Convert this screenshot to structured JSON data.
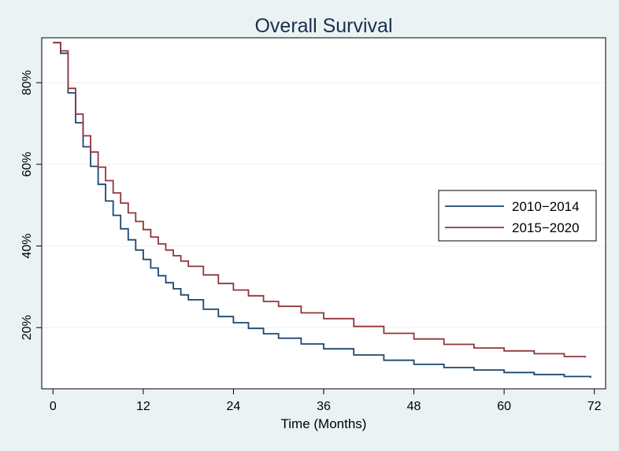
{
  "chart_data": {
    "type": "line",
    "title": "Overall Survival",
    "xlabel": "Time (Months)",
    "ylabel": "",
    "xlim": [
      -1.5,
      73.5
    ],
    "ylim": [
      5,
      91
    ],
    "xticks": [
      0,
      12,
      24,
      36,
      48,
      60,
      72
    ],
    "xtick_labels": [
      "0",
      "12",
      "24",
      "36",
      "48",
      "60",
      "72"
    ],
    "yticks": [
      20,
      40,
      60,
      80
    ],
    "ytick_labels": [
      "20%",
      "40%",
      "60%",
      "80%"
    ],
    "grid": true,
    "legend_position": "right",
    "step": true,
    "series": [
      {
        "name": "2010−2014",
        "color": "#1a476f",
        "x": [
          0,
          1,
          2,
          3,
          4,
          5,
          6,
          7,
          8,
          9,
          10,
          11,
          12,
          13,
          14,
          15,
          16,
          17,
          18,
          20,
          22,
          24,
          26,
          28,
          30,
          33,
          36,
          40,
          44,
          48,
          52,
          56,
          60,
          64,
          68,
          71.5
        ],
        "y": [
          89.8,
          87.2,
          77.5,
          70.2,
          64.3,
          59.5,
          55.1,
          51.0,
          47.5,
          44.2,
          41.5,
          39.0,
          36.7,
          34.6,
          32.7,
          31.0,
          29.5,
          28.0,
          26.8,
          24.5,
          22.7,
          21.2,
          19.8,
          18.5,
          17.4,
          16.0,
          14.8,
          13.3,
          12.0,
          11.0,
          10.2,
          9.6,
          9.0,
          8.5,
          8.0,
          7.7
        ]
      },
      {
        "name": "2015−2020",
        "color": "#90353b",
        "x": [
          0,
          1,
          2,
          3,
          4,
          5,
          6,
          7,
          8,
          9,
          10,
          11,
          12,
          13,
          14,
          15,
          16,
          17,
          18,
          20,
          22,
          24,
          26,
          28,
          30,
          33,
          36,
          40,
          44,
          48,
          52,
          56,
          60,
          64,
          68,
          70.8
        ],
        "y": [
          89.8,
          87.8,
          78.6,
          72.3,
          67.0,
          63.0,
          59.3,
          56.0,
          53.0,
          50.5,
          48.1,
          46.0,
          44.0,
          42.2,
          40.5,
          39.0,
          37.6,
          36.3,
          35.0,
          32.9,
          30.8,
          29.2,
          27.8,
          26.4,
          25.2,
          23.6,
          22.2,
          20.3,
          18.6,
          17.2,
          15.9,
          15.0,
          14.3,
          13.6,
          12.9,
          12.7
        ]
      }
    ]
  }
}
